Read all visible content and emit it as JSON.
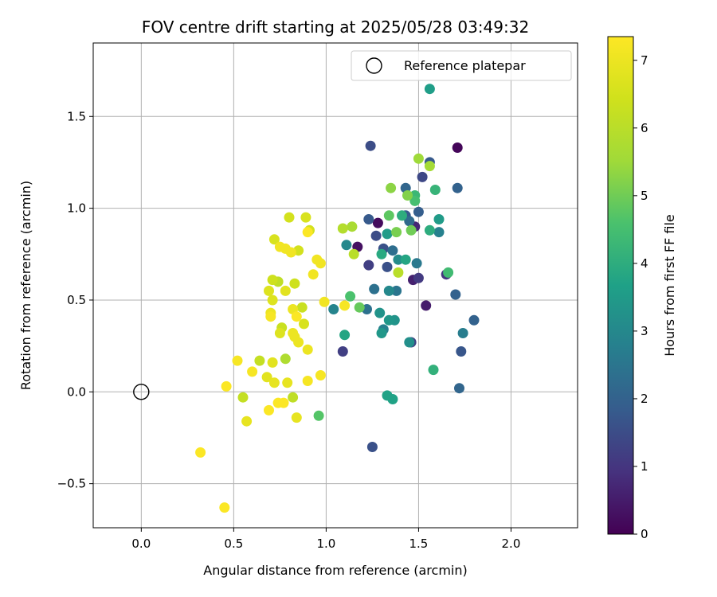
{
  "chart_data": {
    "type": "scatter",
    "title": "FOV centre drift starting at 2025/05/28 03:49:32",
    "xlabel": "Angular distance from reference (arcmin)",
    "ylabel": "Rotation from reference (arcmin)",
    "xlim": [
      -0.26,
      2.36
    ],
    "ylim": [
      -0.74,
      1.9
    ],
    "x_ticks": [
      0.0,
      0.5,
      1.0,
      1.5,
      2.0
    ],
    "x_tick_labels": [
      "0.0",
      "0.5",
      "1.0",
      "1.5",
      "2.0"
    ],
    "y_ticks": [
      -0.5,
      0.0,
      0.5,
      1.0,
      1.5
    ],
    "y_tick_labels": [
      "−0.5",
      "0.0",
      "0.5",
      "1.0",
      "1.5"
    ],
    "grid": true,
    "legend": {
      "placement": "top-right",
      "entries": [
        "Reference platepar"
      ]
    },
    "reference_point": {
      "x": 0.0,
      "y": 0.0,
      "label": "Reference platepar"
    },
    "colorbar": {
      "label": "Hours from first FF file",
      "range": [
        0,
        7.35
      ],
      "ticks": [
        0,
        1,
        2,
        3,
        4,
        5,
        6,
        7
      ],
      "tick_labels": [
        "0",
        "1",
        "2",
        "3",
        "4",
        "5",
        "6",
        "7"
      ],
      "colormap": "viridis"
    },
    "points": [
      {
        "x": 1.71,
        "y": 1.33,
        "h": 0.1
      },
      {
        "x": 1.28,
        "y": 0.92,
        "h": 0.2
      },
      {
        "x": 1.17,
        "y": 0.79,
        "h": 0.3
      },
      {
        "x": 1.54,
        "y": 0.47,
        "h": 0.5
      },
      {
        "x": 1.47,
        "y": 0.61,
        "h": 0.6
      },
      {
        "x": 1.48,
        "y": 0.9,
        "h": 0.7
      },
      {
        "x": 1.65,
        "y": 0.64,
        "h": 1.0
      },
      {
        "x": 1.5,
        "y": 0.62,
        "h": 1.1
      },
      {
        "x": 1.23,
        "y": 0.69,
        "h": 1.2
      },
      {
        "x": 1.09,
        "y": 0.22,
        "h": 1.2
      },
      {
        "x": 1.46,
        "y": 0.27,
        "h": 1.3
      },
      {
        "x": 1.52,
        "y": 1.17,
        "h": 1.4
      },
      {
        "x": 1.24,
        "y": 1.34,
        "h": 1.5
      },
      {
        "x": 1.27,
        "y": 0.85,
        "h": 1.5
      },
      {
        "x": 1.31,
        "y": 0.78,
        "h": 1.6
      },
      {
        "x": 1.33,
        "y": 0.68,
        "h": 1.6
      },
      {
        "x": 1.25,
        "y": -0.3,
        "h": 1.6
      },
      {
        "x": 1.73,
        "y": 0.22,
        "h": 1.7
      },
      {
        "x": 1.23,
        "y": 0.94,
        "h": 1.8
      },
      {
        "x": 1.43,
        "y": 0.96,
        "h": 1.8
      },
      {
        "x": 1.56,
        "y": 1.25,
        "h": 1.8
      },
      {
        "x": 1.5,
        "y": 0.98,
        "h": 1.9
      },
      {
        "x": 1.71,
        "y": 1.11,
        "h": 2.0
      },
      {
        "x": 1.7,
        "y": 0.53,
        "h": 2.0
      },
      {
        "x": 1.8,
        "y": 0.39,
        "h": 2.0
      },
      {
        "x": 1.72,
        "y": 0.02,
        "h": 2.1
      },
      {
        "x": 1.43,
        "y": 1.11,
        "h": 2.1
      },
      {
        "x": 1.45,
        "y": 0.93,
        "h": 2.2
      },
      {
        "x": 1.36,
        "y": 0.77,
        "h": 2.3
      },
      {
        "x": 1.26,
        "y": 0.56,
        "h": 2.4
      },
      {
        "x": 1.22,
        "y": 0.45,
        "h": 2.4
      },
      {
        "x": 1.38,
        "y": 0.55,
        "h": 2.5
      },
      {
        "x": 1.49,
        "y": 0.7,
        "h": 2.6
      },
      {
        "x": 1.74,
        "y": 0.32,
        "h": 2.7
      },
      {
        "x": 1.61,
        "y": 0.87,
        "h": 2.8
      },
      {
        "x": 1.31,
        "y": 0.34,
        "h": 2.8
      },
      {
        "x": 1.04,
        "y": 0.45,
        "h": 2.9
      },
      {
        "x": 1.11,
        "y": 0.8,
        "h": 3.0
      },
      {
        "x": 1.34,
        "y": 0.55,
        "h": 3.0
      },
      {
        "x": 1.39,
        "y": 0.72,
        "h": 3.1
      },
      {
        "x": 1.45,
        "y": 0.27,
        "h": 3.2
      },
      {
        "x": 1.29,
        "y": 0.43,
        "h": 3.3
      },
      {
        "x": 1.37,
        "y": 0.39,
        "h": 3.3
      },
      {
        "x": 1.34,
        "y": 0.39,
        "h": 3.4
      },
      {
        "x": 1.3,
        "y": 0.32,
        "h": 3.4
      },
      {
        "x": 1.61,
        "y": 0.94,
        "h": 3.5
      },
      {
        "x": 1.33,
        "y": 0.86,
        "h": 3.5
      },
      {
        "x": 1.56,
        "y": 1.65,
        "h": 3.6
      },
      {
        "x": 1.33,
        "y": -0.02,
        "h": 3.7
      },
      {
        "x": 1.36,
        "y": -0.04,
        "h": 3.7
      },
      {
        "x": 1.1,
        "y": 0.31,
        "h": 3.8
      },
      {
        "x": 1.43,
        "y": 0.72,
        "h": 3.8
      },
      {
        "x": 1.3,
        "y": 0.75,
        "h": 3.9
      },
      {
        "x": 1.41,
        "y": 0.96,
        "h": 4.0
      },
      {
        "x": 1.56,
        "y": 0.88,
        "h": 4.0
      },
      {
        "x": 1.58,
        "y": 0.12,
        "h": 4.1
      },
      {
        "x": 1.59,
        "y": 1.1,
        "h": 4.2
      },
      {
        "x": 1.48,
        "y": 1.07,
        "h": 4.3
      },
      {
        "x": 1.66,
        "y": 0.65,
        "h": 4.4
      },
      {
        "x": 1.48,
        "y": 1.04,
        "h": 4.5
      },
      {
        "x": 1.13,
        "y": 0.52,
        "h": 4.6
      },
      {
        "x": 0.96,
        "y": -0.13,
        "h": 4.7
      },
      {
        "x": 1.34,
        "y": 0.96,
        "h": 4.8
      },
      {
        "x": 1.18,
        "y": 0.46,
        "h": 4.9
      },
      {
        "x": 1.46,
        "y": 0.88,
        "h": 5.0
      },
      {
        "x": 1.38,
        "y": 0.87,
        "h": 5.1
      },
      {
        "x": 1.44,
        "y": 1.07,
        "h": 5.2
      },
      {
        "x": 1.35,
        "y": 1.11,
        "h": 5.3
      },
      {
        "x": 1.5,
        "y": 1.27,
        "h": 5.5
      },
      {
        "x": 1.56,
        "y": 1.23,
        "h": 5.6
      },
      {
        "x": 1.14,
        "y": 0.9,
        "h": 5.7
      },
      {
        "x": 0.78,
        "y": 0.18,
        "h": 5.8
      },
      {
        "x": 1.09,
        "y": 0.89,
        "h": 5.9
      },
      {
        "x": 1.15,
        "y": 0.75,
        "h": 6.0
      },
      {
        "x": 1.39,
        "y": 0.65,
        "h": 6.0
      },
      {
        "x": 0.82,
        "y": -0.03,
        "h": 6.1
      },
      {
        "x": 0.74,
        "y": 0.6,
        "h": 6.1
      },
      {
        "x": 0.64,
        "y": 0.17,
        "h": 6.2
      },
      {
        "x": 0.55,
        "y": -0.03,
        "h": 6.2
      },
      {
        "x": 0.76,
        "y": 0.35,
        "h": 6.3
      },
      {
        "x": 0.87,
        "y": 0.46,
        "h": 6.3
      },
      {
        "x": 0.83,
        "y": 0.59,
        "h": 6.4
      },
      {
        "x": 0.71,
        "y": 0.61,
        "h": 6.4
      },
      {
        "x": 0.85,
        "y": 0.77,
        "h": 6.5
      },
      {
        "x": 0.91,
        "y": 0.88,
        "h": 6.5
      },
      {
        "x": 0.8,
        "y": 0.95,
        "h": 6.5
      },
      {
        "x": 0.89,
        "y": 0.95,
        "h": 6.6
      },
      {
        "x": 0.72,
        "y": 0.83,
        "h": 6.6
      },
      {
        "x": 0.88,
        "y": 0.37,
        "h": 6.6
      },
      {
        "x": 0.75,
        "y": 0.32,
        "h": 6.7
      },
      {
        "x": 0.69,
        "y": 0.55,
        "h": 6.7
      },
      {
        "x": 0.71,
        "y": 0.5,
        "h": 6.7
      },
      {
        "x": 0.78,
        "y": 0.55,
        "h": 6.8
      },
      {
        "x": 0.68,
        "y": 0.08,
        "h": 6.8
      },
      {
        "x": 0.71,
        "y": 0.16,
        "h": 6.8
      },
      {
        "x": 0.72,
        "y": 0.05,
        "h": 6.9
      },
      {
        "x": 0.79,
        "y": 0.05,
        "h": 6.9
      },
      {
        "x": 0.84,
        "y": -0.14,
        "h": 6.9
      },
      {
        "x": 0.57,
        "y": -0.16,
        "h": 6.9
      },
      {
        "x": 0.7,
        "y": 0.43,
        "h": 7.0
      },
      {
        "x": 0.82,
        "y": 0.45,
        "h": 7.0
      },
      {
        "x": 0.9,
        "y": 0.23,
        "h": 7.0
      },
      {
        "x": 0.82,
        "y": 0.32,
        "h": 7.0
      },
      {
        "x": 0.83,
        "y": 0.3,
        "h": 7.0
      },
      {
        "x": 0.85,
        "y": 0.27,
        "h": 7.0
      },
      {
        "x": 0.93,
        "y": 0.64,
        "h": 7.1
      },
      {
        "x": 0.97,
        "y": 0.7,
        "h": 7.1
      },
      {
        "x": 0.95,
        "y": 0.72,
        "h": 7.1
      },
      {
        "x": 0.78,
        "y": 0.78,
        "h": 7.1
      },
      {
        "x": 0.81,
        "y": 0.76,
        "h": 7.1
      },
      {
        "x": 0.75,
        "y": 0.79,
        "h": 7.1
      },
      {
        "x": 0.99,
        "y": 0.49,
        "h": 7.1
      },
      {
        "x": 1.1,
        "y": 0.47,
        "h": 7.2
      },
      {
        "x": 0.7,
        "y": 0.41,
        "h": 7.2
      },
      {
        "x": 0.9,
        "y": 0.06,
        "h": 7.2
      },
      {
        "x": 0.97,
        "y": 0.09,
        "h": 7.2
      },
      {
        "x": 0.6,
        "y": 0.11,
        "h": 7.2
      },
      {
        "x": 0.52,
        "y": 0.17,
        "h": 7.2
      },
      {
        "x": 0.46,
        "y": 0.03,
        "h": 7.3
      },
      {
        "x": 0.74,
        "y": -0.06,
        "h": 7.3
      },
      {
        "x": 0.77,
        "y": -0.06,
        "h": 7.3
      },
      {
        "x": 0.69,
        "y": -0.1,
        "h": 7.3
      },
      {
        "x": 0.9,
        "y": 0.87,
        "h": 7.3
      },
      {
        "x": 0.32,
        "y": -0.33,
        "h": 7.3
      },
      {
        "x": 0.45,
        "y": -0.63,
        "h": 7.3
      },
      {
        "x": 0.84,
        "y": 0.41,
        "h": 7.3
      }
    ]
  }
}
